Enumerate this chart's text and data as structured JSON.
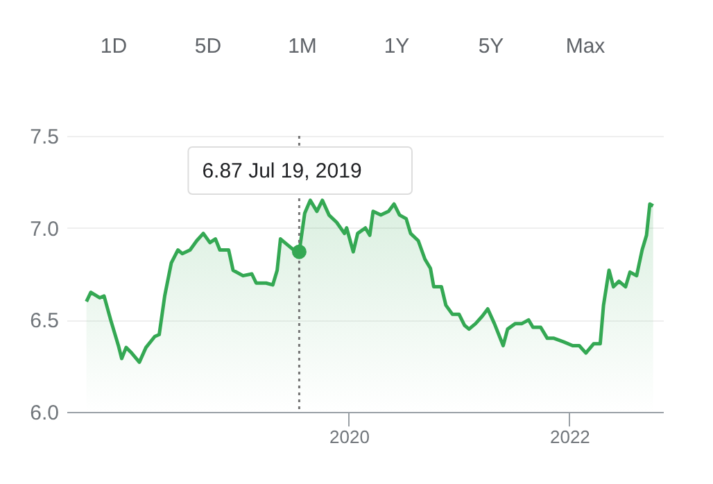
{
  "chart_data": {
    "type": "area",
    "series": [
      {
        "color": "#34a853",
        "x": [
          2017.62,
          2017.66,
          2017.74,
          2017.78,
          2017.84,
          2017.91,
          2017.94,
          2017.98,
          2018.03,
          2018.1,
          2018.16,
          2018.24,
          2018.28,
          2018.33,
          2018.39,
          2018.45,
          2018.49,
          2018.56,
          2018.62,
          2018.68,
          2018.74,
          2018.79,
          2018.83,
          2018.91,
          2018.95,
          2019.04,
          2019.12,
          2019.16,
          2019.25,
          2019.31,
          2019.35,
          2019.38,
          2019.44,
          2019.5,
          2019.55,
          2019.6,
          2019.65,
          2019.71,
          2019.76,
          2019.82,
          2019.89,
          2019.96,
          2019.98,
          2020.04,
          2020.08,
          2020.15,
          2020.19,
          2020.22,
          2020.29,
          2020.36,
          2020.41,
          2020.46,
          2020.52,
          2020.56,
          2020.63,
          2020.69,
          2020.74,
          2020.77,
          2020.84,
          2020.88,
          2020.94,
          2021.0,
          2021.05,
          2021.09,
          2021.15,
          2021.21,
          2021.26,
          2021.32,
          2021.4,
          2021.44,
          2021.51,
          2021.57,
          2021.63,
          2021.67,
          2021.74,
          2021.8,
          2021.86,
          2021.95,
          2022.03,
          2022.09,
          2022.15,
          2022.22,
          2022.28,
          2022.31,
          2022.36,
          2022.4,
          2022.45,
          2022.51,
          2022.55,
          2022.61,
          2022.66,
          2022.7,
          2022.73,
          2022.76
        ],
        "values": [
          6.6,
          6.65,
          6.62,
          6.63,
          6.5,
          6.36,
          6.29,
          6.35,
          6.32,
          6.27,
          6.35,
          6.41,
          6.42,
          6.63,
          6.81,
          6.88,
          6.86,
          6.88,
          6.93,
          6.97,
          6.92,
          6.94,
          6.88,
          6.88,
          6.77,
          6.74,
          6.75,
          6.7,
          6.7,
          6.69,
          6.77,
          6.94,
          6.91,
          6.88,
          6.87,
          7.08,
          7.15,
          7.09,
          7.15,
          7.07,
          7.03,
          6.97,
          7.0,
          6.87,
          6.97,
          7.0,
          6.96,
          7.09,
          7.07,
          7.09,
          7.13,
          7.07,
          7.05,
          6.97,
          6.93,
          6.83,
          6.78,
          6.68,
          6.68,
          6.58,
          6.53,
          6.53,
          6.47,
          6.45,
          6.48,
          6.52,
          6.56,
          6.48,
          6.36,
          6.45,
          6.48,
          6.48,
          6.5,
          6.46,
          6.46,
          6.4,
          6.4,
          6.38,
          6.36,
          6.36,
          6.32,
          6.37,
          6.37,
          6.58,
          6.77,
          6.68,
          6.71,
          6.68,
          6.76,
          6.74,
          6.88,
          6.96,
          7.13,
          7.12
        ]
      }
    ],
    "xlim": [
      2017.44,
      2022.85
    ],
    "xticks": [
      2020,
      2022
    ],
    "ylim": [
      6.0,
      7.5
    ],
    "yticks": [
      {
        "value": 6.0,
        "label": "6.0"
      },
      {
        "value": 6.5,
        "label": "6.5"
      },
      {
        "value": 7.0,
        "label": "7.0"
      },
      {
        "value": 7.5,
        "label": "7.5"
      }
    ],
    "grid": "y",
    "ref_lines": [
      {
        "axis": "x",
        "value": 2019.55,
        "color": "#757575",
        "line_style": "dotted"
      }
    ],
    "annotations": [
      "1D",
      "5D",
      "1M",
      "1Y",
      "5Y",
      "Max",
      "6.87  Jul 19, 2019"
    ]
  }
}
